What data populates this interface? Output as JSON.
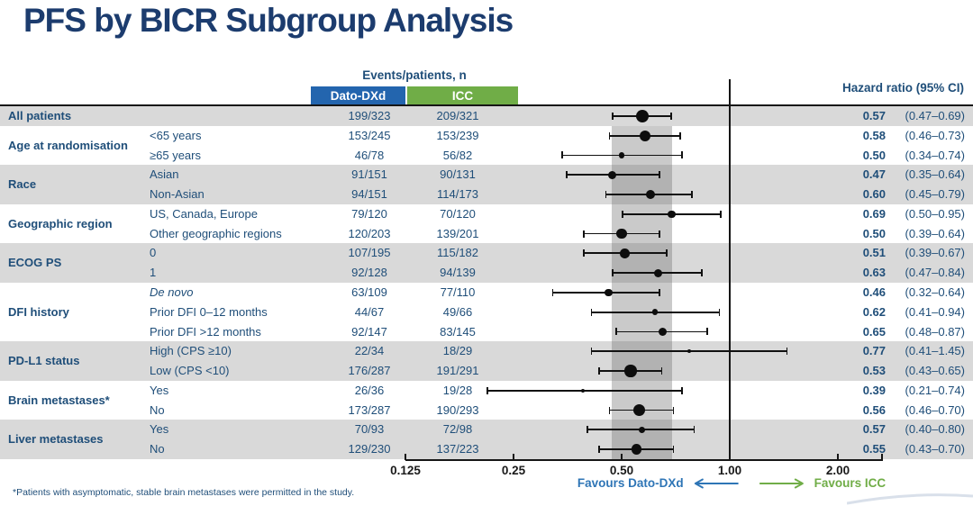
{
  "title": "PFS by BICR Subgroup Analysis",
  "table": {
    "events_header": "Events/patients, n",
    "arm1": "Dato-DXd",
    "arm2": "ICC",
    "hr_header": "Hazard ratio (95% CI)"
  },
  "favours": {
    "left": "Favours Dato-DXd",
    "right": "Favours ICC"
  },
  "footnote": "*Patients with asymptomatic, stable brain metastases were permitted in the study.",
  "colors": {
    "title_navy": "#1c3c6e",
    "text_navy": "#1f4e79",
    "dato_blue": "#2365ae",
    "icc_green": "#70ad47",
    "favours_blue": "#2e75b6",
    "favours_green": "#70ad47",
    "row_shade": "#d9d9d9",
    "band_gray": "#737373",
    "line_black": "#161616"
  },
  "chart_data": {
    "type": "forest",
    "x_scale": "log2",
    "x_ticks": [
      0.125,
      0.25,
      0.5,
      1.0,
      2.0
    ],
    "x_tick_labels": [
      "0.125",
      "0.25",
      "0.50",
      "1.00",
      "2.00"
    ],
    "reference_line": 1.0,
    "overall_ci_band": [
      0.47,
      0.69
    ],
    "groups": [
      {
        "name": "All patients",
        "shade": true,
        "rows": [
          {
            "label": "",
            "dato": "199/323",
            "icc": "209/321",
            "hr": 0.57,
            "lo": 0.47,
            "hi": 0.69,
            "hr_text": "0.57",
            "ci_text": "(0.47–0.69)"
          }
        ]
      },
      {
        "name": "Age at randomisation",
        "shade": false,
        "rows": [
          {
            "label": "<65 years",
            "dato": "153/245",
            "icc": "153/239",
            "hr": 0.58,
            "lo": 0.46,
            "hi": 0.73,
            "hr_text": "0.58",
            "ci_text": "(0.46–0.73)"
          },
          {
            "label": "≥65 years",
            "dato": "46/78",
            "icc": "56/82",
            "hr": 0.5,
            "lo": 0.34,
            "hi": 0.74,
            "hr_text": "0.50",
            "ci_text": "(0.34–0.74)"
          }
        ]
      },
      {
        "name": "Race",
        "shade": true,
        "rows": [
          {
            "label": "Asian",
            "dato": "91/151",
            "icc": "90/131",
            "hr": 0.47,
            "lo": 0.35,
            "hi": 0.64,
            "hr_text": "0.47",
            "ci_text": "(0.35–0.64)"
          },
          {
            "label": "Non-Asian",
            "dato": "94/151",
            "icc": "114/173",
            "hr": 0.6,
            "lo": 0.45,
            "hi": 0.79,
            "hr_text": "0.60",
            "ci_text": "(0.45–0.79)"
          }
        ]
      },
      {
        "name": "Geographic region",
        "shade": false,
        "rows": [
          {
            "label": "US, Canada, Europe",
            "dato": "79/120",
            "icc": "70/120",
            "hr": 0.69,
            "lo": 0.5,
            "hi": 0.95,
            "hr_text": "0.69",
            "ci_text": "(0.50–0.95)"
          },
          {
            "label": "Other geographic regions",
            "dato": "120/203",
            "icc": "139/201",
            "hr": 0.5,
            "lo": 0.39,
            "hi": 0.64,
            "hr_text": "0.50",
            "ci_text": "(0.39–0.64)"
          }
        ]
      },
      {
        "name": "ECOG PS",
        "shade": true,
        "rows": [
          {
            "label": "0",
            "dato": "107/195",
            "icc": "115/182",
            "hr": 0.51,
            "lo": 0.39,
            "hi": 0.67,
            "hr_text": "0.51",
            "ci_text": "(0.39–0.67)"
          },
          {
            "label": "1",
            "dato": "92/128",
            "icc": "94/139",
            "hr": 0.63,
            "lo": 0.47,
            "hi": 0.84,
            "hr_text": "0.63",
            "ci_text": "(0.47–0.84)"
          }
        ]
      },
      {
        "name": "DFI history",
        "shade": false,
        "rows": [
          {
            "label": "De novo",
            "italic": true,
            "dato": "63/109",
            "icc": "77/110",
            "hr": 0.46,
            "lo": 0.32,
            "hi": 0.64,
            "hr_text": "0.46",
            "ci_text": "(0.32–0.64)"
          },
          {
            "label": "Prior DFI 0–12 months",
            "dato": "44/67",
            "icc": "49/66",
            "hr": 0.62,
            "lo": 0.41,
            "hi": 0.94,
            "hr_text": "0.62",
            "ci_text": "(0.41–0.94)"
          },
          {
            "label": "Prior DFI >12 months",
            "dato": "92/147",
            "icc": "83/145",
            "hr": 0.65,
            "lo": 0.48,
            "hi": 0.87,
            "hr_text": "0.65",
            "ci_text": "(0.48–0.87)"
          }
        ]
      },
      {
        "name": "PD-L1 status",
        "shade": true,
        "rows": [
          {
            "label": "High (CPS ≥10)",
            "dato": "22/34",
            "icc": "18/29",
            "hr": 0.77,
            "lo": 0.41,
            "hi": 1.45,
            "hr_text": "0.77",
            "ci_text": "(0.41–1.45)"
          },
          {
            "label": "Low (CPS <10)",
            "dato": "176/287",
            "icc": "191/291",
            "hr": 0.53,
            "lo": 0.43,
            "hi": 0.65,
            "hr_text": "0.53",
            "ci_text": "(0.43–0.65)"
          }
        ]
      },
      {
        "name": "Brain metastases*",
        "shade": false,
        "rows": [
          {
            "label": "Yes",
            "dato": "26/36",
            "icc": "19/28",
            "hr": 0.39,
            "lo": 0.21,
            "hi": 0.74,
            "hr_text": "0.39",
            "ci_text": "(0.21–0.74)"
          },
          {
            "label": "No",
            "dato": "173/287",
            "icc": "190/293",
            "hr": 0.56,
            "lo": 0.46,
            "hi": 0.7,
            "hr_text": "0.56",
            "ci_text": "(0.46–0.70)"
          }
        ]
      },
      {
        "name": "Liver metastases",
        "shade": true,
        "rows": [
          {
            "label": "Yes",
            "dato": "70/93",
            "icc": "72/98",
            "hr": 0.57,
            "lo": 0.4,
            "hi": 0.8,
            "hr_text": "0.57",
            "ci_text": "(0.40–0.80)"
          },
          {
            "label": "No",
            "dato": "129/230",
            "icc": "137/223",
            "hr": 0.55,
            "lo": 0.43,
            "hi": 0.7,
            "hr_text": "0.55",
            "ci_text": "(0.43–0.70)"
          }
        ]
      }
    ]
  }
}
